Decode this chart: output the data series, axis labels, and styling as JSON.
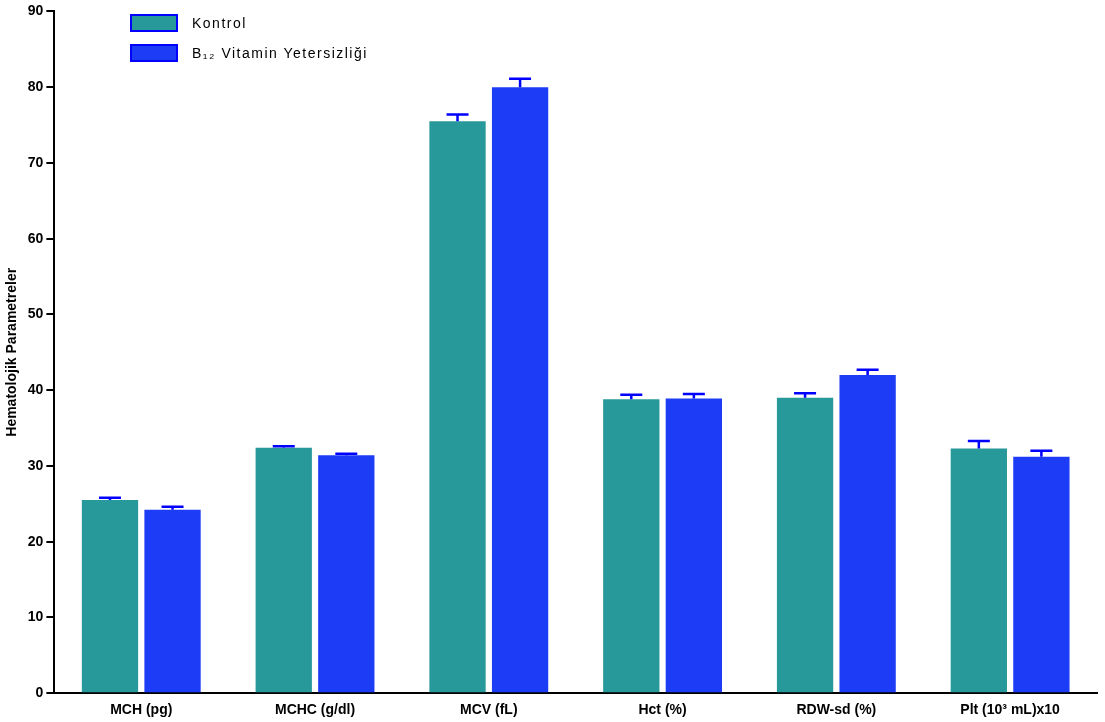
{
  "chart_data": {
    "type": "bar",
    "ylabel": "Hematolojik Parametreler",
    "categories": [
      "MCH (pg)",
      "MCHC (g/dl)",
      "MCV (fL)",
      "Hct (%)",
      "RDW-sd (%)",
      "Plt (10³ mL)x10"
    ],
    "series": [
      {
        "name": "Kontrol",
        "color": "#27999a",
        "values": [
          25.5,
          32.4,
          75.5,
          38.8,
          39.0,
          32.3
        ],
        "errors": [
          [
            25.5,
            25.8
          ],
          [
            32.4,
            32.6
          ],
          [
            75.5,
            76.4
          ],
          [
            38.8,
            39.4
          ],
          [
            39.0,
            39.6
          ],
          [
            32.3,
            33.3
          ]
        ]
      },
      {
        "name": "B₁₂ Vitamin Yetersizliği",
        "color": "#1c3cf5",
        "values": [
          24.2,
          31.4,
          80.0,
          38.9,
          42.0,
          31.2
        ],
        "errors": [
          [
            24.2,
            24.6
          ],
          [
            31.4,
            31.6
          ],
          [
            80.0,
            81.1
          ],
          [
            38.9,
            39.5
          ],
          [
            42.0,
            42.7
          ],
          [
            31.2,
            32.0
          ]
        ]
      }
    ],
    "ylim": [
      0,
      90
    ],
    "yticks": [
      0,
      10,
      20,
      30,
      40,
      50,
      60,
      70,
      80,
      90
    ],
    "grid": false,
    "legend": "top left"
  }
}
